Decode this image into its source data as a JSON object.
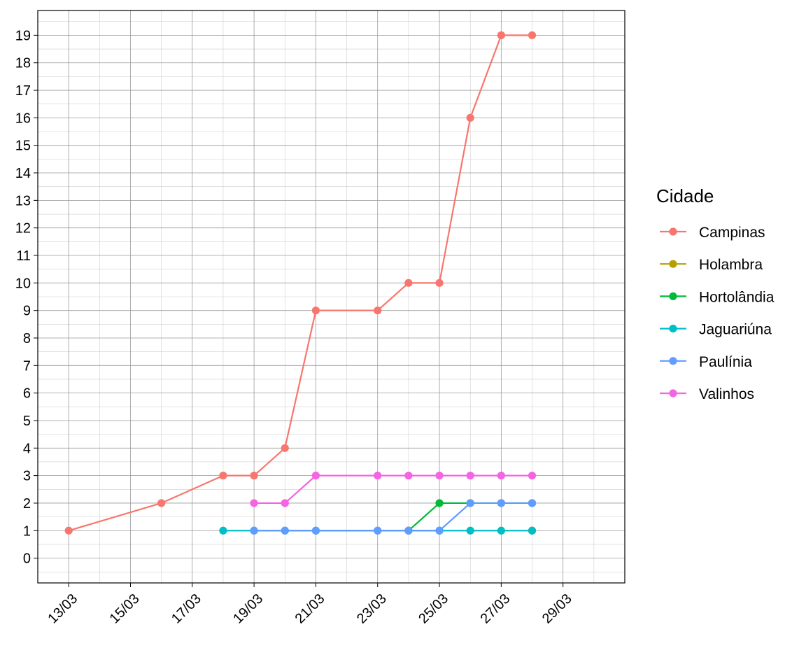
{
  "chart_data": {
    "type": "line",
    "x_type": "date",
    "x_unit": "day (DD/MM)",
    "x_ticks": [
      "13/03",
      "15/03",
      "17/03",
      "19/03",
      "21/03",
      "23/03",
      "25/03",
      "27/03",
      "29/03"
    ],
    "x_range": [
      "12/03",
      "31/03"
    ],
    "y_ticks": [
      0,
      1,
      2,
      3,
      4,
      5,
      6,
      7,
      8,
      9,
      10,
      11,
      12,
      13,
      14,
      15,
      16,
      17,
      18,
      19
    ],
    "ylim": [
      -0.9,
      19.9
    ],
    "grid": true,
    "legend_position": "right",
    "legend_title": "Cidade",
    "xlabel": "",
    "ylabel": "",
    "series": [
      {
        "name": "Campinas",
        "color": "#F8766D",
        "points": [
          [
            "13/03",
            1
          ],
          [
            "16/03",
            2
          ],
          [
            "18/03",
            3
          ],
          [
            "19/03",
            3
          ],
          [
            "20/03",
            4
          ],
          [
            "21/03",
            9
          ],
          [
            "23/03",
            9
          ],
          [
            "24/03",
            10
          ],
          [
            "25/03",
            10
          ],
          [
            "26/03",
            16
          ],
          [
            "27/03",
            19
          ],
          [
            "28/03",
            19
          ]
        ]
      },
      {
        "name": "Holambra",
        "color": "#B79F00",
        "points": [
          [
            "28/03",
            1
          ]
        ]
      },
      {
        "name": "Hortolândia",
        "color": "#00BA38",
        "points": [
          [
            "24/03",
            1
          ],
          [
            "25/03",
            2
          ],
          [
            "26/03",
            2
          ],
          [
            "27/03",
            2
          ],
          [
            "28/03",
            2
          ]
        ]
      },
      {
        "name": "Jaguariúna",
        "color": "#00BFC4",
        "points": [
          [
            "18/03",
            1
          ],
          [
            "19/03",
            1
          ],
          [
            "20/03",
            1
          ],
          [
            "21/03",
            1
          ],
          [
            "23/03",
            1
          ],
          [
            "24/03",
            1
          ],
          [
            "25/03",
            1
          ],
          [
            "26/03",
            1
          ],
          [
            "27/03",
            1
          ],
          [
            "28/03",
            1
          ]
        ]
      },
      {
        "name": "Paulínia",
        "color": "#619CFF",
        "points": [
          [
            "19/03",
            1
          ],
          [
            "20/03",
            1
          ],
          [
            "21/03",
            1
          ],
          [
            "23/03",
            1
          ],
          [
            "24/03",
            1
          ],
          [
            "25/03",
            1
          ],
          [
            "26/03",
            2
          ],
          [
            "27/03",
            2
          ],
          [
            "28/03",
            2
          ]
        ]
      },
      {
        "name": "Valinhos",
        "color": "#F564E3",
        "points": [
          [
            "19/03",
            2
          ],
          [
            "20/03",
            2
          ],
          [
            "21/03",
            3
          ],
          [
            "23/03",
            3
          ],
          [
            "24/03",
            3
          ],
          [
            "25/03",
            3
          ],
          [
            "26/03",
            3
          ],
          [
            "27/03",
            3
          ],
          [
            "28/03",
            3
          ]
        ]
      }
    ]
  }
}
